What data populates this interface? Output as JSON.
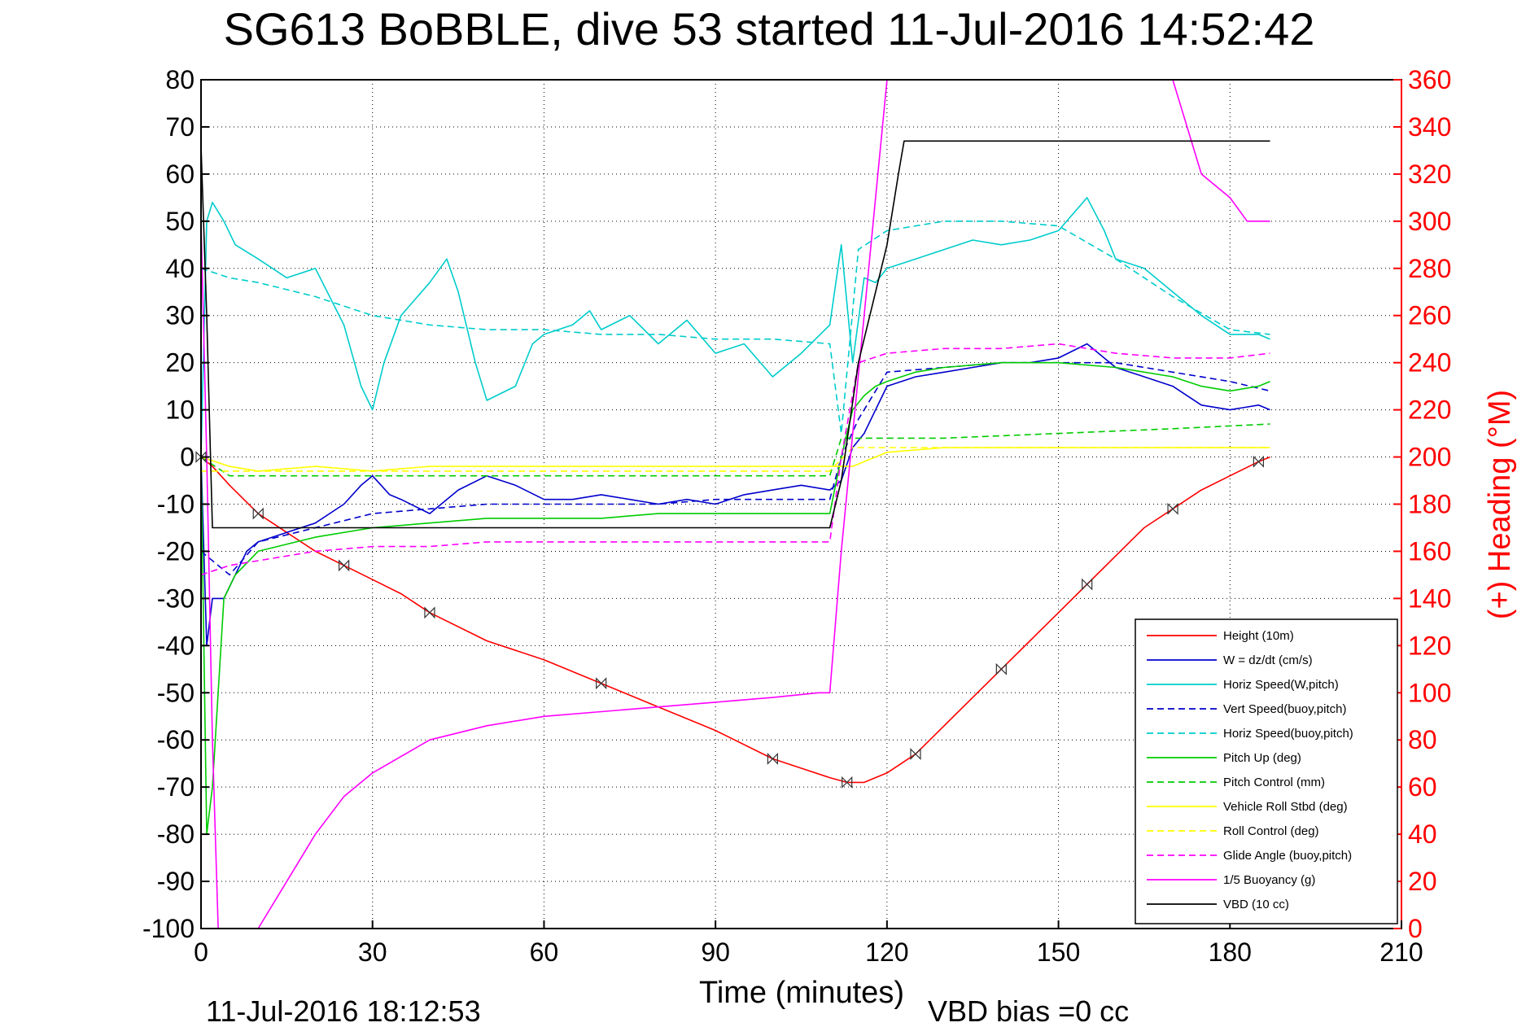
{
  "chart_data": {
    "type": "line",
    "title": "SG613 BoBBLE, dive 53 started 11-Jul-2016 14:52:42",
    "xlabel": "Time (minutes)",
    "ylabel": "",
    "y2label": "(+) Heading (°M)",
    "xlim": [
      0,
      210
    ],
    "ylim": [
      -100,
      80
    ],
    "y2lim": [
      0,
      360
    ],
    "xticks": [
      0,
      30,
      60,
      90,
      120,
      150,
      180,
      210
    ],
    "yticks": [
      80,
      70,
      60,
      50,
      40,
      30,
      20,
      10,
      0,
      -10,
      -20,
      -30,
      -40,
      -50,
      -60,
      -70,
      -80,
      -90,
      -100
    ],
    "y2ticks": [
      360,
      340,
      320,
      300,
      280,
      260,
      240,
      220,
      200,
      180,
      160,
      140,
      120,
      100,
      80,
      60,
      40,
      20,
      0
    ],
    "grid": true,
    "legend_position": "bottom-right",
    "footer_left": "11-Jul-2016 18:12:53",
    "footer_right": "VBD bias =0 cc",
    "series": [
      {
        "name": "Height (10m)",
        "color": "#ff0000",
        "style": "solid",
        "x": [
          0,
          2,
          5,
          10,
          15,
          20,
          25,
          30,
          35,
          40,
          50,
          60,
          70,
          80,
          90,
          100,
          105,
          110,
          113,
          116,
          120,
          125,
          130,
          135,
          140,
          145,
          150,
          155,
          160,
          165,
          170,
          175,
          180,
          185,
          187
        ],
        "y": [
          0,
          -2,
          -6,
          -12,
          -16,
          -20,
          -23,
          -26,
          -29,
          -33,
          -39,
          -43,
          -48,
          -53,
          -58,
          -64,
          -66,
          -68,
          -69,
          -69,
          -67,
          -63,
          -57,
          -51,
          -45,
          -39,
          -33,
          -27,
          -21,
          -15,
          -11,
          -7,
          -4,
          -1,
          0
        ]
      },
      {
        "name": "W = dz/dt (cm/s)",
        "color": "#0000cc",
        "style": "solid",
        "x": [
          0,
          1,
          2,
          4,
          6,
          8,
          10,
          15,
          20,
          25,
          28,
          30,
          33,
          35,
          40,
          45,
          50,
          55,
          60,
          65,
          70,
          75,
          80,
          85,
          90,
          95,
          100,
          105,
          110,
          112,
          114,
          116,
          118,
          120,
          125,
          130,
          135,
          140,
          145,
          150,
          155,
          160,
          165,
          170,
          175,
          180,
          185,
          187
        ],
        "y": [
          0,
          -40,
          -30,
          -30,
          -25,
          -20,
          -18,
          -16,
          -14,
          -10,
          -6,
          -4,
          -8,
          -9,
          -12,
          -7,
          -4,
          -6,
          -9,
          -9,
          -8,
          -9,
          -10,
          -9,
          -10,
          -8,
          -7,
          -6,
          -7,
          -5,
          2,
          5,
          10,
          15,
          17,
          18,
          19,
          20,
          20,
          21,
          24,
          19,
          17,
          15,
          11,
          10,
          11,
          10
        ]
      },
      {
        "name": "Horiz Speed(W,pitch)",
        "color": "#00cccc",
        "style": "solid",
        "x": [
          0,
          1,
          2,
          4,
          6,
          10,
          15,
          20,
          25,
          28,
          30,
          32,
          35,
          40,
          43,
          45,
          48,
          50,
          55,
          58,
          60,
          65,
          68,
          70,
          75,
          80,
          85,
          90,
          95,
          100,
          105,
          110,
          112,
          114,
          116,
          118,
          120,
          125,
          130,
          135,
          140,
          145,
          150,
          155,
          158,
          160,
          165,
          170,
          175,
          180,
          185,
          187
        ],
        "y": [
          0,
          50,
          54,
          50,
          45,
          42,
          38,
          40,
          28,
          15,
          10,
          20,
          30,
          37,
          42,
          35,
          20,
          12,
          15,
          24,
          26,
          28,
          31,
          27,
          30,
          24,
          29,
          22,
          24,
          17,
          22,
          28,
          45,
          20,
          38,
          37,
          40,
          42,
          44,
          46,
          45,
          46,
          48,
          55,
          48,
          42,
          40,
          35,
          30,
          26,
          26,
          25
        ]
      },
      {
        "name": "Vert Speed(buoy,pitch)",
        "color": "#0000cc",
        "style": "dashed",
        "x": [
          0,
          5,
          10,
          20,
          30,
          40,
          50,
          60,
          70,
          80,
          90,
          100,
          110,
          112,
          115,
          120,
          130,
          140,
          150,
          160,
          170,
          180,
          187
        ],
        "y": [
          -20,
          -25,
          -18,
          -15,
          -12,
          -11,
          -10,
          -10,
          -10,
          -10,
          -9,
          -9,
          -9,
          0,
          8,
          18,
          19,
          20,
          20,
          20,
          18,
          16,
          14
        ]
      },
      {
        "name": "Horiz Speed(buoy,pitch)",
        "color": "#00cccc",
        "style": "dashed",
        "x": [
          0,
          5,
          10,
          20,
          30,
          40,
          50,
          60,
          70,
          80,
          90,
          100,
          110,
          112,
          115,
          120,
          130,
          140,
          150,
          160,
          170,
          180,
          187
        ],
        "y": [
          40,
          38,
          37,
          34,
          30,
          28,
          27,
          27,
          26,
          26,
          25,
          25,
          24,
          5,
          44,
          48,
          50,
          50,
          49,
          42,
          34,
          27,
          26
        ]
      },
      {
        "name": "Pitch Up (deg)",
        "color": "#00cc00",
        "style": "solid",
        "x": [
          0,
          1,
          2,
          4,
          6,
          10,
          20,
          30,
          40,
          50,
          60,
          70,
          80,
          90,
          100,
          110,
          112,
          114,
          116,
          118,
          120,
          125,
          130,
          140,
          150,
          160,
          170,
          175,
          180,
          185,
          187
        ],
        "y": [
          0,
          -80,
          -70,
          -30,
          -25,
          -20,
          -17,
          -15,
          -14,
          -13,
          -13,
          -13,
          -12,
          -12,
          -12,
          -12,
          0,
          10,
          13,
          15,
          16,
          18,
          19,
          20,
          20,
          19,
          17,
          15,
          14,
          15,
          16
        ]
      },
      {
        "name": "Pitch Control (mm)",
        "color": "#00cc00",
        "style": "dashed",
        "x": [
          0,
          5,
          110,
          112,
          130,
          150,
          170,
          187
        ],
        "y": [
          0,
          -4,
          -4,
          4,
          4,
          5,
          6,
          7
        ]
      },
      {
        "name": "Vehicle Roll Stbd (deg)",
        "color": "#ffff00",
        "style": "solid",
        "x": [
          0,
          5,
          10,
          20,
          30,
          40,
          50,
          60,
          70,
          80,
          90,
          100,
          110,
          114,
          120,
          130,
          140,
          150,
          160,
          170,
          180,
          187
        ],
        "y": [
          0,
          -2,
          -3,
          -2,
          -3,
          -2,
          -2,
          -2,
          -2,
          -2,
          -2,
          -2,
          -2,
          -2,
          1,
          2,
          2,
          2,
          2,
          2,
          2,
          2
        ]
      },
      {
        "name": "Roll Control (deg)",
        "color": "#ffff00",
        "style": "dashed",
        "x": [
          0,
          5,
          110,
          114,
          187
        ],
        "y": [
          -3,
          -3,
          -3,
          2,
          2
        ]
      },
      {
        "name": "Glide Angle (buoy,pitch)",
        "color": "#ff00ff",
        "style": "dashed",
        "x": [
          0,
          5,
          10,
          20,
          30,
          40,
          50,
          60,
          70,
          80,
          90,
          100,
          110,
          112,
          115,
          120,
          130,
          140,
          150,
          160,
          170,
          180,
          187
        ],
        "y": [
          -25,
          -23,
          -22,
          -20,
          -19,
          -19,
          -18,
          -18,
          -18,
          -18,
          -18,
          -18,
          -18,
          0,
          20,
          22,
          23,
          23,
          24,
          22,
          21,
          21,
          22
        ]
      },
      {
        "name": "1/5 Buoyancy (g)",
        "color": "#ff00ff",
        "style": "solid",
        "x": [
          0,
          1,
          2,
          3,
          5,
          8,
          10,
          15,
          20,
          25,
          30,
          40,
          50,
          60,
          70,
          80,
          90,
          100,
          108,
          110,
          112,
          116,
          120,
          121,
          170,
          175,
          180,
          183,
          187
        ],
        "y": [
          50,
          0,
          -60,
          -100,
          -100,
          -100,
          -100,
          -90,
          -80,
          -72,
          -67,
          -60,
          -57,
          -55,
          -54,
          -53,
          -52,
          -51,
          -50,
          -50,
          -20,
          30,
          80,
          80,
          80,
          60,
          55,
          50,
          50
        ]
      },
      {
        "name": "VBD (10 cc)",
        "color": "#000000",
        "style": "solid",
        "x": [
          0,
          1,
          2,
          50,
          100,
          110,
          112,
          115,
          117,
          120,
          122,
          123,
          187
        ],
        "y": [
          66,
          30,
          -15,
          -15,
          -15,
          -15,
          -5,
          20,
          30,
          45,
          60,
          67,
          67
        ]
      }
    ]
  }
}
